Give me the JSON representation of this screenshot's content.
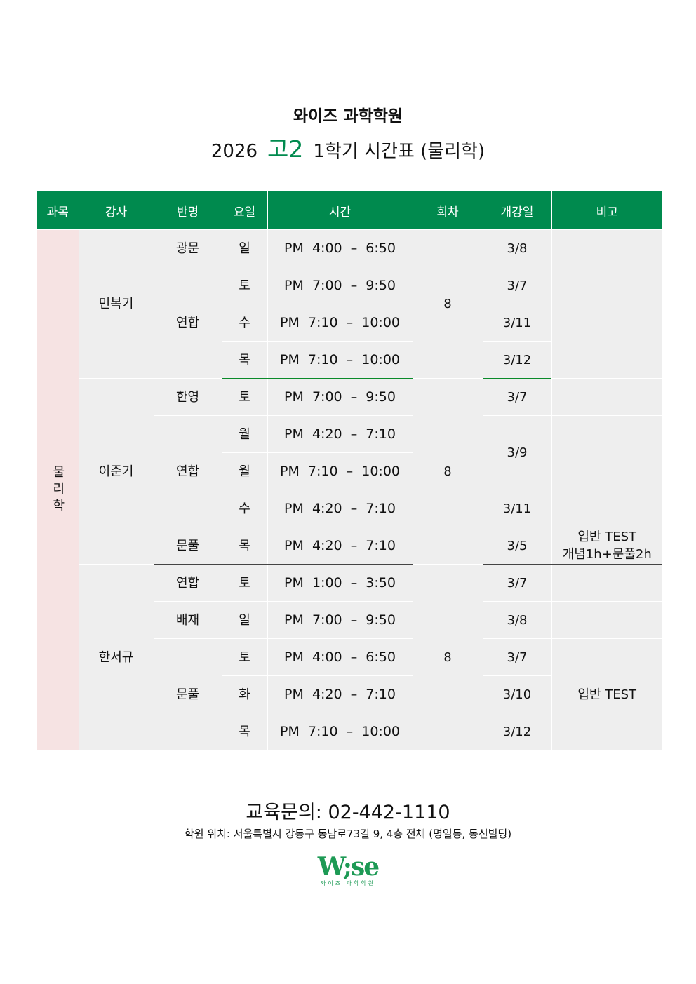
{
  "title": {
    "line1": "와이즈 과학학원",
    "year": "2026",
    "grade": "고2",
    "rest": "1학기 시간표 (물리학)"
  },
  "colors": {
    "accent": "#008a4e",
    "cell": "#eeeeee",
    "subject_bg": "#f6e3e3"
  },
  "headers": [
    "과목",
    "강사",
    "반명",
    "요일",
    "시간",
    "회차",
    "개강일",
    "비고"
  ],
  "subject": "물리학",
  "teachers": [
    "민복기",
    "이준기",
    "한서규"
  ],
  "sessions": [
    "8",
    "8",
    "8"
  ],
  "rows": [
    {
      "cls": "광문",
      "day": "일",
      "time": "PM  4:00  –  6:50",
      "start": "3/8"
    },
    {
      "cls": "연합",
      "day": "토",
      "time": "PM  7:00  –  9:50",
      "start": "3/7"
    },
    {
      "day": "수",
      "time": "PM  7:10  –  10:00",
      "start": "3/11"
    },
    {
      "day": "목",
      "time": "PM  7:10  –  10:00",
      "start": "3/12"
    },
    {
      "cls": "한영",
      "day": "토",
      "time": "PM  7:00  –  9:50",
      "start": "3/7"
    },
    {
      "cls": "연합",
      "day": "월",
      "time": "PM  4:20  –  7:10",
      "start": "3/9"
    },
    {
      "day": "월",
      "time": "PM  7:10  –  10:00"
    },
    {
      "day": "수",
      "time": "PM  4:20  –  7:10",
      "start": "3/11"
    },
    {
      "cls": "문풀",
      "day": "목",
      "time": "PM  4:20  –  7:10",
      "start": "3/5",
      "note1": "입반 TEST",
      "note2": "개념1h+문풀2h"
    },
    {
      "cls": "연합",
      "day": "토",
      "time": "PM  1:00  –  3:50",
      "start": "3/7"
    },
    {
      "cls": "배재",
      "day": "일",
      "time": "PM  7:00  –  9:50",
      "start": "3/8"
    },
    {
      "cls": "문풀",
      "day": "토",
      "time": "PM  4:00  –  6:50",
      "start": "3/7",
      "note1": "입반 TEST"
    },
    {
      "day": "화",
      "time": "PM  4:20  –  7:10",
      "start": "3/10"
    },
    {
      "day": "목",
      "time": "PM  7:10  –  10:00",
      "start": "3/12"
    }
  ],
  "footer": {
    "contact": "교육문의:  02-442-1110",
    "address": "학원 위치: 서울특별시 강동구 동남로73길 9, 4층 전체 (명일동, 동신빌딩)",
    "logo_text": "W;se",
    "logo_sub": "와이즈 과학학원"
  }
}
